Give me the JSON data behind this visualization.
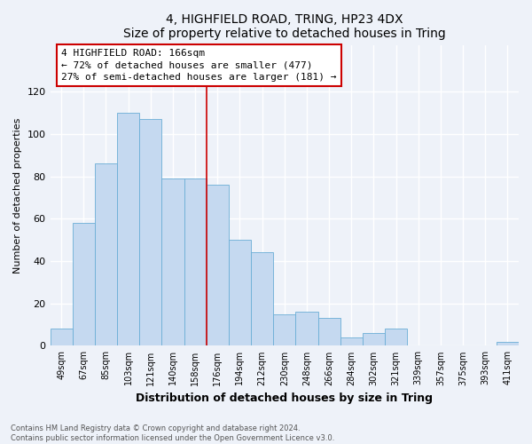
{
  "title": "4, HIGHFIELD ROAD, TRING, HP23 4DX",
  "subtitle": "Size of property relative to detached houses in Tring",
  "xlabel": "Distribution of detached houses by size in Tring",
  "ylabel": "Number of detached properties",
  "categories": [
    "49sqm",
    "67sqm",
    "85sqm",
    "103sqm",
    "121sqm",
    "140sqm",
    "158sqm",
    "176sqm",
    "194sqm",
    "212sqm",
    "230sqm",
    "248sqm",
    "266sqm",
    "284sqm",
    "302sqm",
    "321sqm",
    "339sqm",
    "357sqm",
    "375sqm",
    "393sqm",
    "411sqm"
  ],
  "values": [
    8,
    58,
    86,
    110,
    107,
    79,
    79,
    76,
    50,
    44,
    15,
    16,
    13,
    4,
    6,
    8,
    0,
    0,
    0,
    0,
    2
  ],
  "bar_color": "#c5d9f0",
  "bar_edge_color": "#6baed6",
  "red_line_label": "4 HIGHFIELD ROAD: 166sqm",
  "annotation_line1": "← 72% of detached houses are smaller (477)",
  "annotation_line2": "27% of semi-detached houses are larger (181) →",
  "annotation_box_color": "#ffffff",
  "annotation_box_edge": "#cc0000",
  "vline_color": "#cc0000",
  "ylim": [
    0,
    142
  ],
  "yticks": [
    0,
    20,
    40,
    60,
    80,
    100,
    120
  ],
  "footer_line1": "Contains HM Land Registry data © Crown copyright and database right 2024.",
  "footer_line2": "Contains public sector information licensed under the Open Government Licence v3.0.",
  "bg_color": "#eef2f9",
  "plot_bg_color": "#eef2f9",
  "grid_color": "#ffffff"
}
